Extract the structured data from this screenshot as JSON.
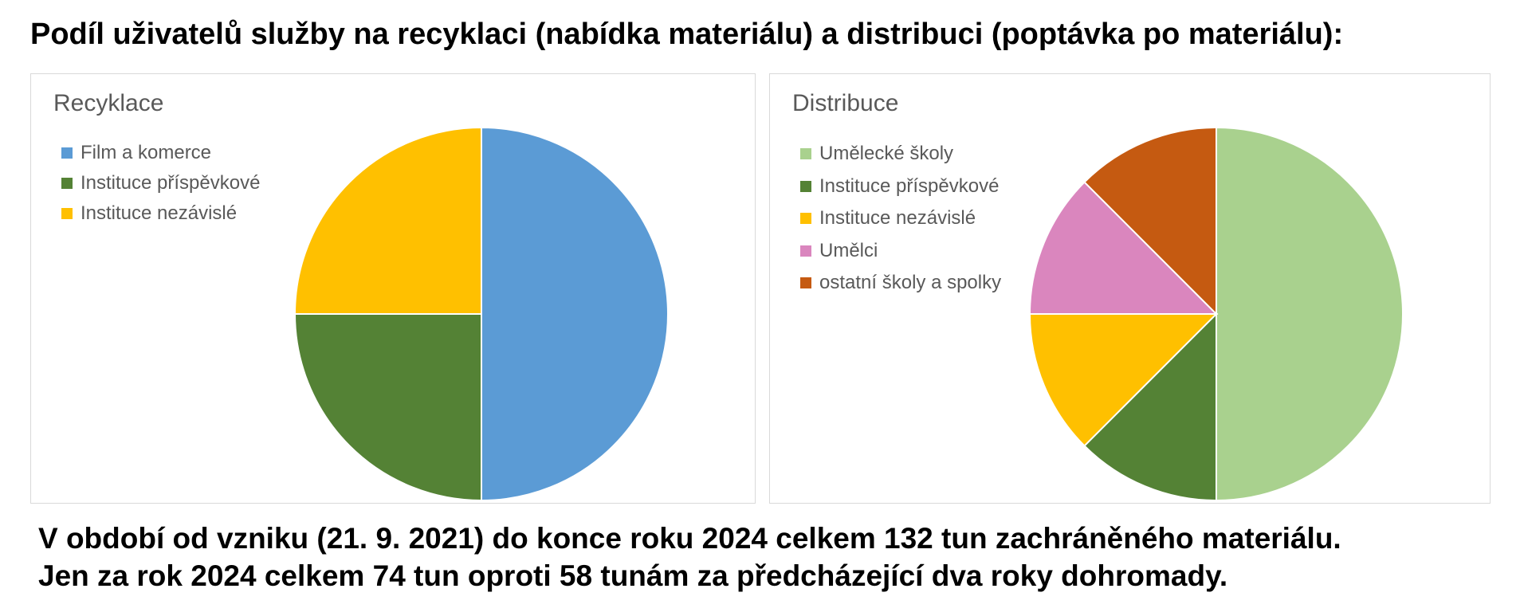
{
  "heading": "Podíl uživatelů služby na recyklaci (nabídka materiálu) a distribuci (poptávka po materiálu):",
  "chart_data": [
    {
      "type": "pie",
      "title": "Recyklace",
      "legend_position": "top-left",
      "start_angle_deg": 0,
      "direction": "clockwise",
      "slices": [
        {
          "name": "Film a komerce",
          "value": 50,
          "color": "#5B9BD5"
        },
        {
          "name": "Instituce příspěvkové",
          "value": 25,
          "color": "#548235"
        },
        {
          "name": "Instituce nezávislé",
          "value": 25,
          "color": "#FFC000"
        }
      ]
    },
    {
      "type": "pie",
      "title": "Distribuce",
      "legend_position": "top-left",
      "start_angle_deg": 0,
      "direction": "clockwise",
      "slices": [
        {
          "name": "Umělecké školy",
          "value": 50,
          "color": "#A9D18E"
        },
        {
          "name": "Instituce příspěvkové",
          "value": 12.5,
          "color": "#548235"
        },
        {
          "name": "Instituce nezávislé",
          "value": 12.5,
          "color": "#FFC000"
        },
        {
          "name": "Umělci",
          "value": 12.5,
          "color": "#DA86BE"
        },
        {
          "name": "ostatní školy a spolky",
          "value": 12.5,
          "color": "#C55A11"
        }
      ]
    }
  ],
  "footer": {
    "line1": "V období od vzniku (21. 9. 2021) do konce roku 2024 celkem 132 tun zachráněného materiálu.",
    "line2": "Jen za rok 2024 celkem 74 tun oproti 58 tunám za předcházející dva roky dohromady."
  }
}
